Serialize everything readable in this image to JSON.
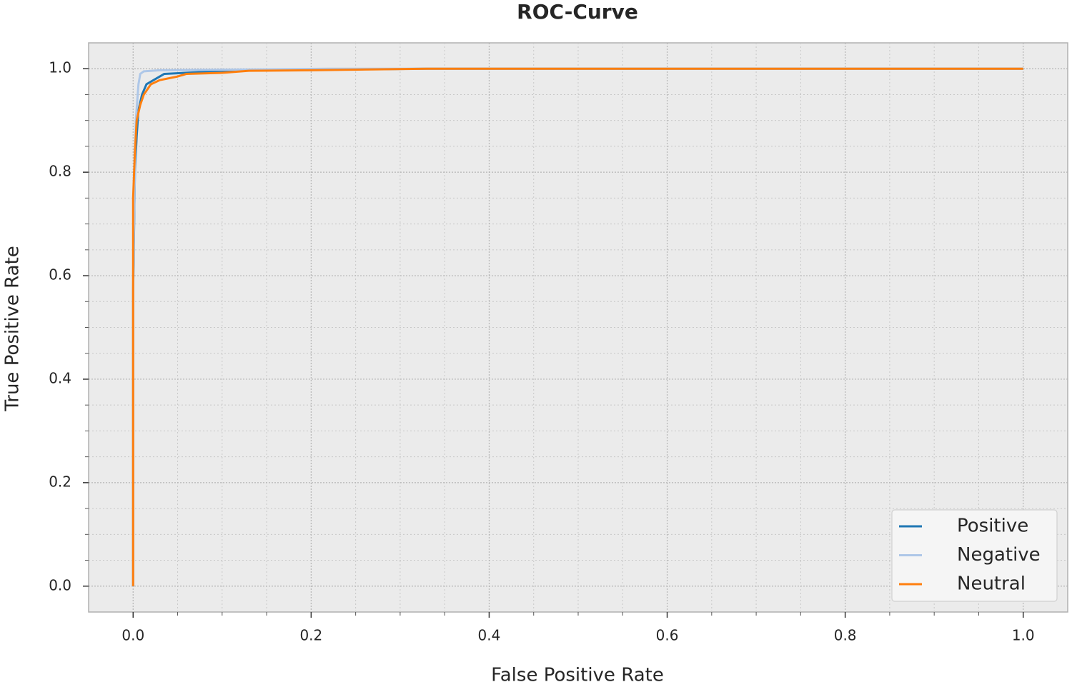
{
  "chart_data": {
    "type": "line",
    "title": "ROC-Curve",
    "x_label": "False Positive Rate",
    "y_label": "True Positive Rate",
    "xlim": [
      -0.05,
      1.05
    ],
    "ylim": [
      -0.05,
      1.05
    ],
    "xticks": [
      {
        "value": 0,
        "label": "0.0"
      },
      0.2,
      0.4,
      0.6,
      0.8,
      {
        "value": 1,
        "label": "1.0"
      }
    ],
    "yticks": [
      {
        "value": 0,
        "label": "0.0"
      },
      0.2,
      0.4,
      0.6,
      0.8,
      {
        "value": 1,
        "label": "1.0"
      }
    ],
    "x_minor_ticks": [
      0.05,
      0.1,
      0.15,
      0.25,
      0.3,
      0.35,
      0.45,
      0.5,
      0.55,
      0.65,
      0.7,
      0.75,
      0.85,
      0.9,
      0.95
    ],
    "y_minor_ticks": [
      0.05,
      0.1,
      0.15,
      0.25,
      0.3,
      0.35,
      0.45,
      0.5,
      0.55,
      0.65,
      0.7,
      0.75,
      0.85,
      0.9,
      0.95
    ],
    "grid": true,
    "legend": "lower right",
    "series": [
      {
        "name": "Positive",
        "color": "#1f77b4",
        "x": [
          0,
          0,
          0.002,
          0.004,
          0.006,
          0.01,
          0.015,
          0.025,
          0.035,
          0.07,
          0.1,
          0.2,
          0.33,
          1
        ],
        "values": [
          0,
          0.57,
          0.8,
          0.87,
          0.92,
          0.95,
          0.97,
          0.98,
          0.99,
          0.993,
          0.996,
          0.998,
          1.0,
          1.0
        ]
      },
      {
        "name": "Negative",
        "color": "#aec7e8",
        "x": [
          0,
          0,
          0.003,
          0.006,
          0.008,
          0.012,
          0.03,
          0.1,
          0.22,
          1
        ],
        "values": [
          0,
          0.6,
          0.9,
          0.97,
          0.99,
          0.995,
          0.997,
          0.998,
          1.0,
          1.0
        ]
      },
      {
        "name": "Neutral",
        "color": "#ff7f0e",
        "x": [
          0,
          0,
          0.002,
          0.004,
          0.008,
          0.012,
          0.02,
          0.03,
          0.05,
          0.06,
          0.1,
          0.13,
          0.2,
          0.33,
          1
        ],
        "values": [
          0,
          0.75,
          0.84,
          0.9,
          0.93,
          0.95,
          0.97,
          0.978,
          0.985,
          0.99,
          0.992,
          0.996,
          0.997,
          1.0,
          1.0
        ]
      }
    ]
  }
}
